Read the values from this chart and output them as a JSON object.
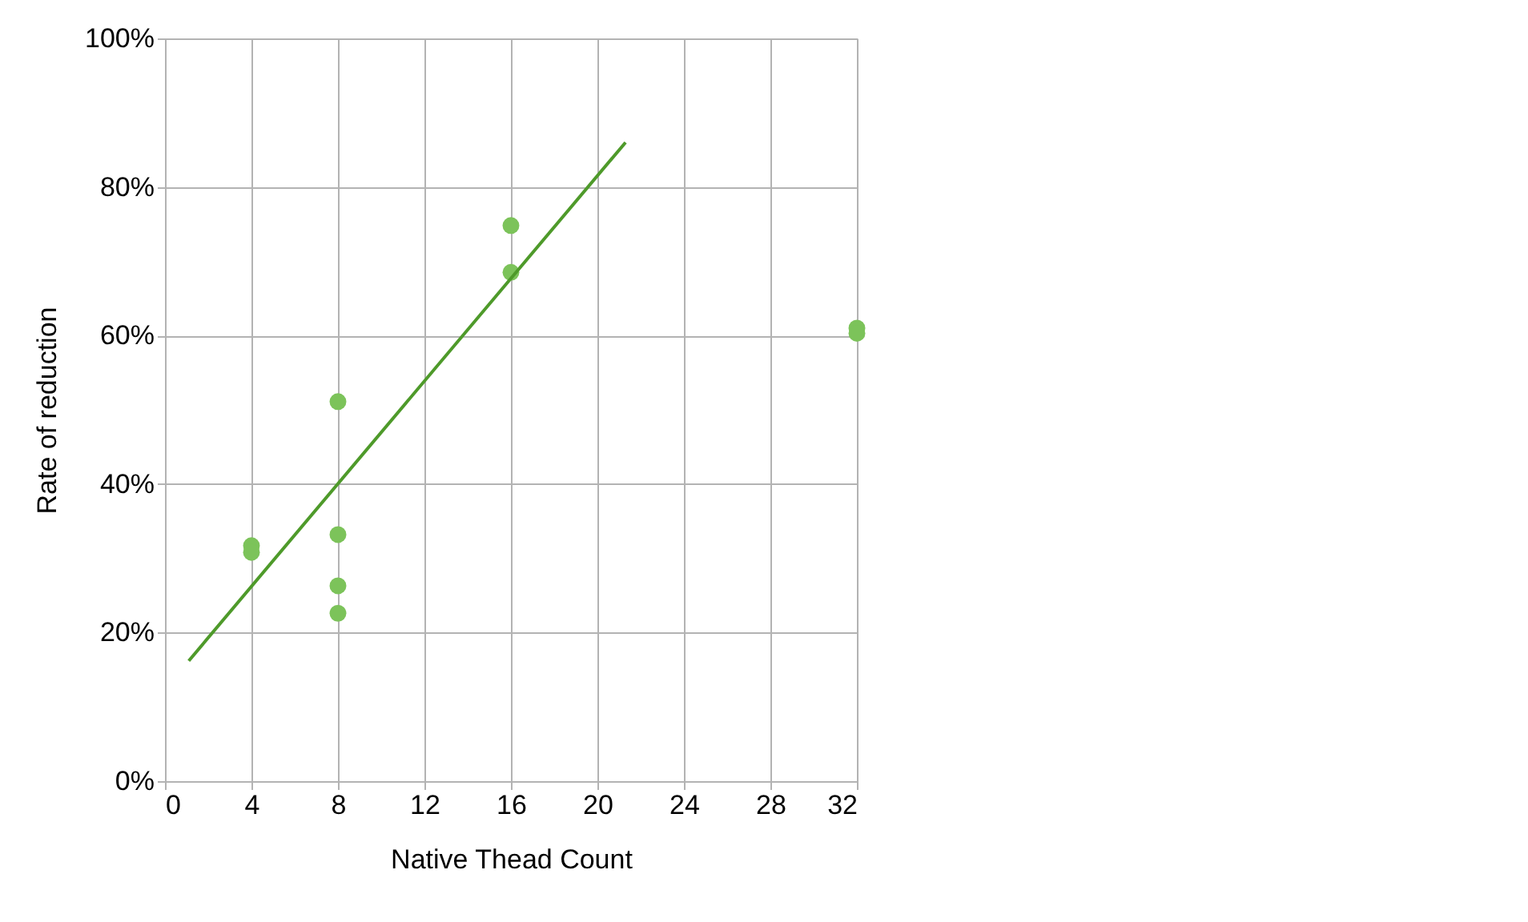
{
  "chart_data": {
    "type": "scatter",
    "xlabel": "Native Thead Count",
    "ylabel": "Rate of reduction",
    "xlim": [
      0,
      32
    ],
    "xticks": [
      0,
      4,
      8,
      12,
      16,
      20,
      24,
      28,
      32
    ],
    "ylim": [
      0,
      100
    ],
    "yticks": [
      {
        "value": 0,
        "label": "0%"
      },
      {
        "value": 20,
        "label": "20%"
      },
      {
        "value": 40,
        "label": "40%"
      },
      {
        "value": 60,
        "label": "60%"
      },
      {
        "value": 80,
        "label": "80%"
      },
      {
        "value": 100,
        "label": "100%"
      }
    ],
    "grid": true,
    "series": [
      {
        "color": "#7cc35a",
        "marker": "circle",
        "x": [
          4,
          4,
          8,
          8,
          8,
          8,
          16,
          16,
          32,
          32
        ],
        "values": [
          31.7,
          30.8,
          51.1,
          33.2,
          26.3,
          22.6,
          74.8,
          68.5,
          61.0,
          60.3
        ]
      },
      {
        "type": "line",
        "color": "#4e9a2a",
        "marker": "none",
        "line_style": "solid",
        "x": [
          1.1,
          21.3
        ],
        "values": [
          16.2,
          86.0
        ]
      }
    ]
  }
}
